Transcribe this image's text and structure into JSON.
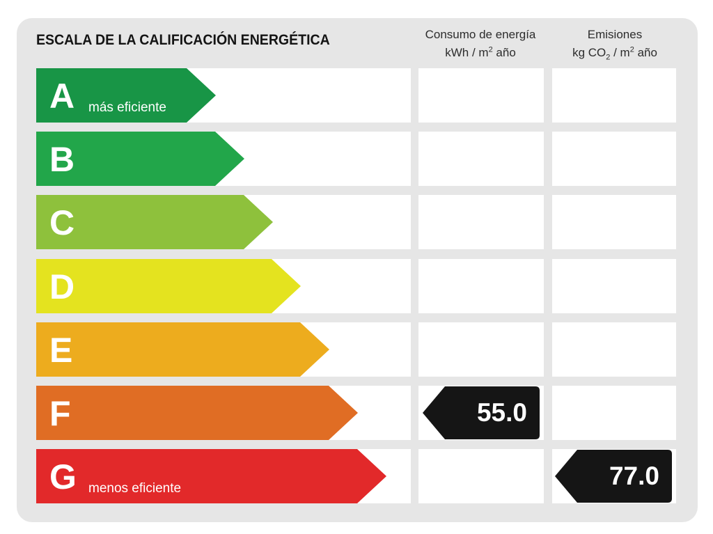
{
  "title": "ESCALA DE LA CALIFICACIÓN ENERGÉTICA",
  "columns": {
    "energy": {
      "line1": "Consumo de energía",
      "line2_pre": "kWh / m",
      "line2_sup": "2",
      "line2_post": " año"
    },
    "emissions": {
      "line1": "Emisiones",
      "line2_pre": "kg CO",
      "line2_sub": "2",
      "line2_mid": " / m",
      "line2_sup": "2",
      "line2_post": " año"
    }
  },
  "ratings": [
    {
      "letter": "A",
      "note": "más eficiente",
      "color": "#189546"
    },
    {
      "letter": "B",
      "note": "",
      "color": "#22a64a"
    },
    {
      "letter": "C",
      "note": "",
      "color": "#8ec13c"
    },
    {
      "letter": "D",
      "note": "",
      "color": "#e4e31f"
    },
    {
      "letter": "E",
      "note": "",
      "color": "#edac1e"
    },
    {
      "letter": "F",
      "note": "",
      "color": "#e06d24"
    },
    {
      "letter": "G",
      "note": "menos eficiente",
      "color": "#e2292a"
    }
  ],
  "result": {
    "energy": {
      "rating": "F",
      "value": "55.0"
    },
    "emissions": {
      "rating": "G",
      "value": "77.0"
    }
  },
  "colors": {
    "marker": "#151515",
    "background": "#e6e6e6",
    "cell": "#ffffff"
  }
}
